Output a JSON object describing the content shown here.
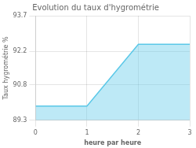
{
  "chart_data": {
    "type": "area",
    "title": "Evolution du taux d'hygrométrie",
    "xlabel": "heure par heure",
    "ylabel": "Taux hygrométrie %",
    "x": [
      0,
      1,
      2,
      3
    ],
    "values": [
      89.9,
      89.9,
      92.5,
      92.5
    ],
    "color": "#5bc8e8",
    "xlim": [
      0,
      3
    ],
    "ylim": [
      89.3,
      93.7
    ],
    "xticks": [
      0,
      1,
      2,
      3
    ],
    "yticks": [
      89.3,
      90.8,
      92.2,
      93.7
    ],
    "grid": true
  }
}
